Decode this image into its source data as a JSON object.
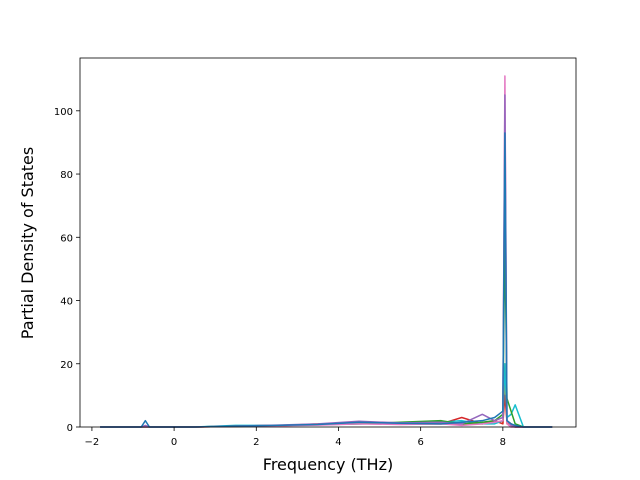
{
  "chart_data": {
    "type": "line",
    "x_label": "Frequency (THz)",
    "y_label": "Partial Density of States",
    "x": [
      -1.8,
      -0.8,
      -0.7,
      -0.6,
      0.5,
      1.5,
      2.5,
      3.5,
      4.5,
      5.5,
      6.5,
      7.0,
      7.5,
      7.8,
      8.0,
      8.05,
      8.1,
      8.2,
      8.3,
      8.5,
      9.2
    ],
    "series": [
      {
        "color": "#ff7f0e",
        "values": [
          0,
          0,
          0,
          0,
          0,
          0.2,
          0.4,
          1,
          1.2,
          1,
          1,
          1,
          1,
          2,
          1,
          15,
          1,
          1,
          0,
          0,
          0
        ]
      },
      {
        "color": "#d62728",
        "values": [
          0,
          0,
          0,
          0,
          0,
          0.2,
          0.4,
          0.8,
          1.5,
          1,
          1,
          3,
          1,
          2,
          1,
          10,
          2,
          1,
          0,
          0,
          0
        ]
      },
      {
        "color": "#17becf",
        "values": [
          0,
          0,
          0,
          0,
          0,
          0.5,
          0.5,
          0.8,
          1,
          1.2,
          1.5,
          2,
          1,
          1,
          2,
          20,
          3,
          4,
          7,
          0,
          0
        ]
      },
      {
        "color": "#2ca02c",
        "values": [
          0,
          0,
          0,
          0,
          0,
          0.3,
          0.5,
          0.7,
          1,
          1.5,
          2,
          1,
          1.5,
          2,
          4,
          60,
          9,
          5,
          1,
          0,
          0
        ]
      },
      {
        "color": "#e377c2",
        "values": [
          0,
          0,
          0,
          0,
          0,
          0.2,
          0.4,
          0.6,
          1,
          0.8,
          1,
          0.5,
          1,
          1.5,
          2,
          111,
          1,
          0,
          0,
          0,
          0
        ]
      },
      {
        "color": "#9467bd",
        "values": [
          0,
          0,
          0.5,
          0,
          0,
          0.3,
          0.6,
          1,
          1.8,
          1.3,
          1.5,
          1,
          4,
          2,
          3,
          105,
          2,
          0.5,
          0,
          0,
          0
        ]
      },
      {
        "color": "#1f77b4",
        "values": [
          0,
          0,
          2,
          0,
          0,
          0.3,
          0.5,
          0.8,
          1.5,
          1.2,
          1,
          1.5,
          2,
          3,
          5,
          93,
          2,
          1,
          0.5,
          0,
          0
        ]
      }
    ],
    "xlim": [
      -2.29,
      9.78
    ],
    "xticks": [
      {
        "value": -2,
        "label": "−2"
      },
      0,
      2,
      4,
      6,
      8
    ],
    "ylim": [
      0,
      116.7
    ],
    "yticks": [
      0,
      20,
      40,
      60,
      80,
      100
    ]
  }
}
